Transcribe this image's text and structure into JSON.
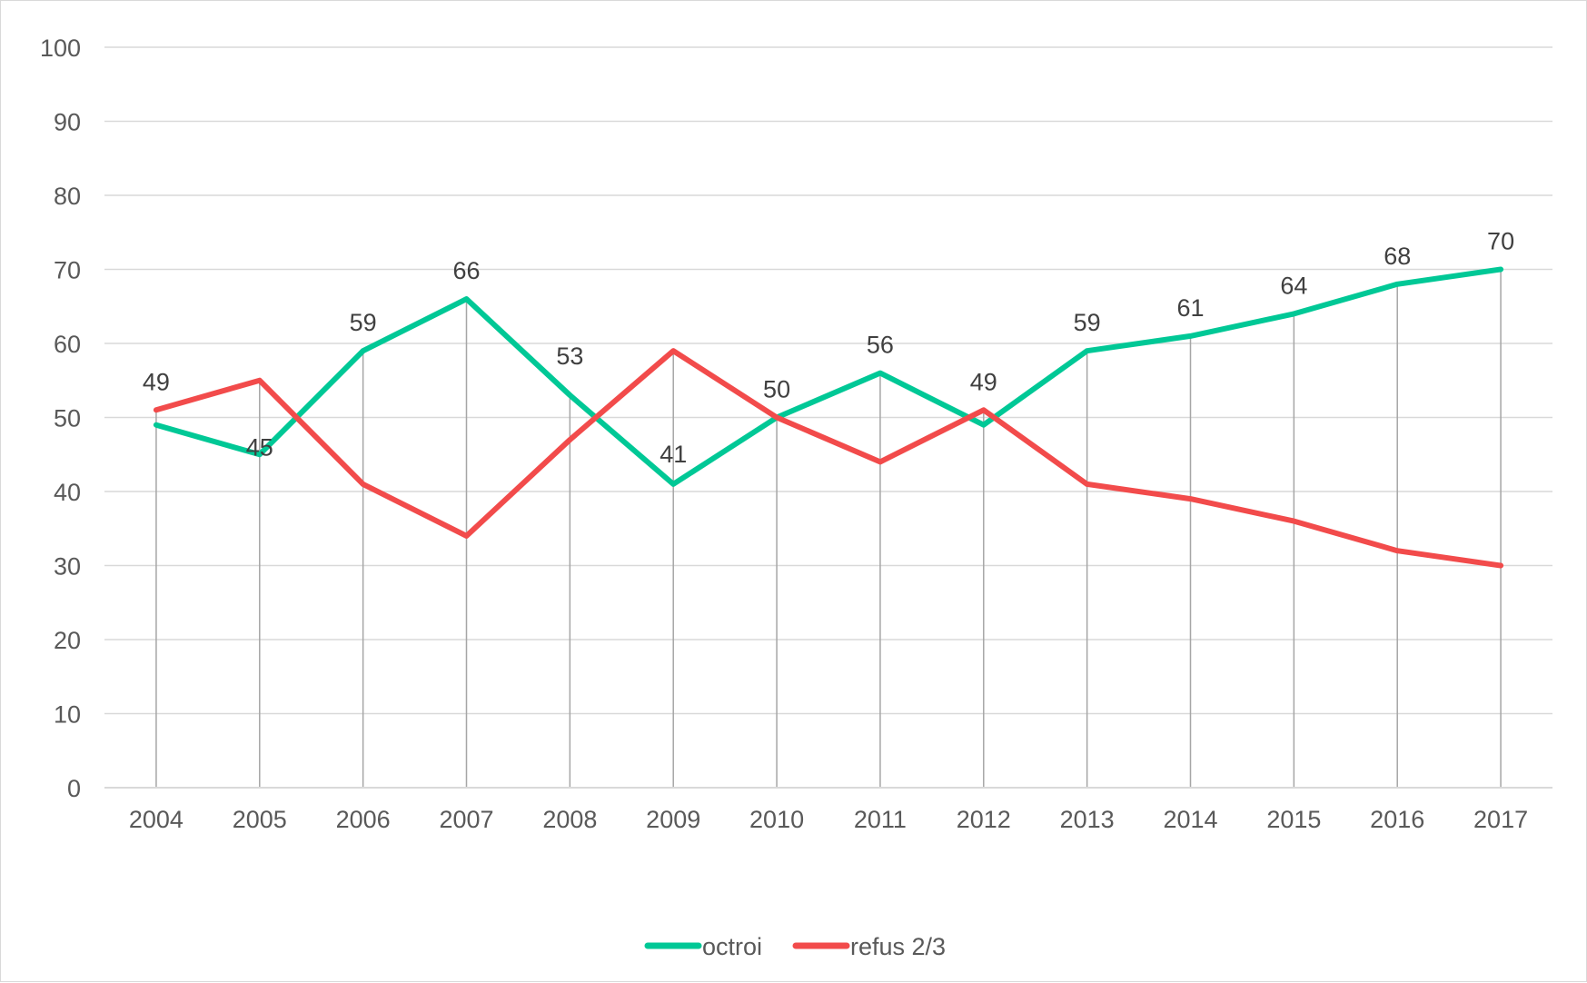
{
  "chart_data": {
    "type": "line",
    "title": "",
    "xlabel": "",
    "ylabel": "",
    "categories": [
      "2004",
      "2005",
      "2006",
      "2007",
      "2008",
      "2009",
      "2010",
      "2011",
      "2012",
      "2013",
      "2014",
      "2015",
      "2016",
      "2017"
    ],
    "ylim": [
      0,
      100
    ],
    "yticks": [
      0,
      10,
      20,
      30,
      40,
      50,
      60,
      70,
      80,
      90,
      100
    ],
    "grid": "horizontal",
    "drop_lines": true,
    "legend_position": "bottom",
    "series": [
      {
        "name": "octroi",
        "color": "#00c896",
        "values": [
          49,
          45,
          59,
          66,
          53,
          41,
          50,
          56,
          49,
          59,
          61,
          64,
          68,
          70
        ],
        "data_labels": [
          "49",
          "45",
          "59",
          "66",
          "53",
          "41",
          "50",
          "56",
          "49",
          "59",
          "61",
          "64",
          "68",
          "70"
        ]
      },
      {
        "name": "refus 2/3",
        "color": "#f24b4b",
        "values": [
          51,
          55,
          41,
          34,
          47,
          59,
          50,
          44,
          51,
          41,
          39,
          36,
          32,
          30
        ]
      }
    ]
  }
}
